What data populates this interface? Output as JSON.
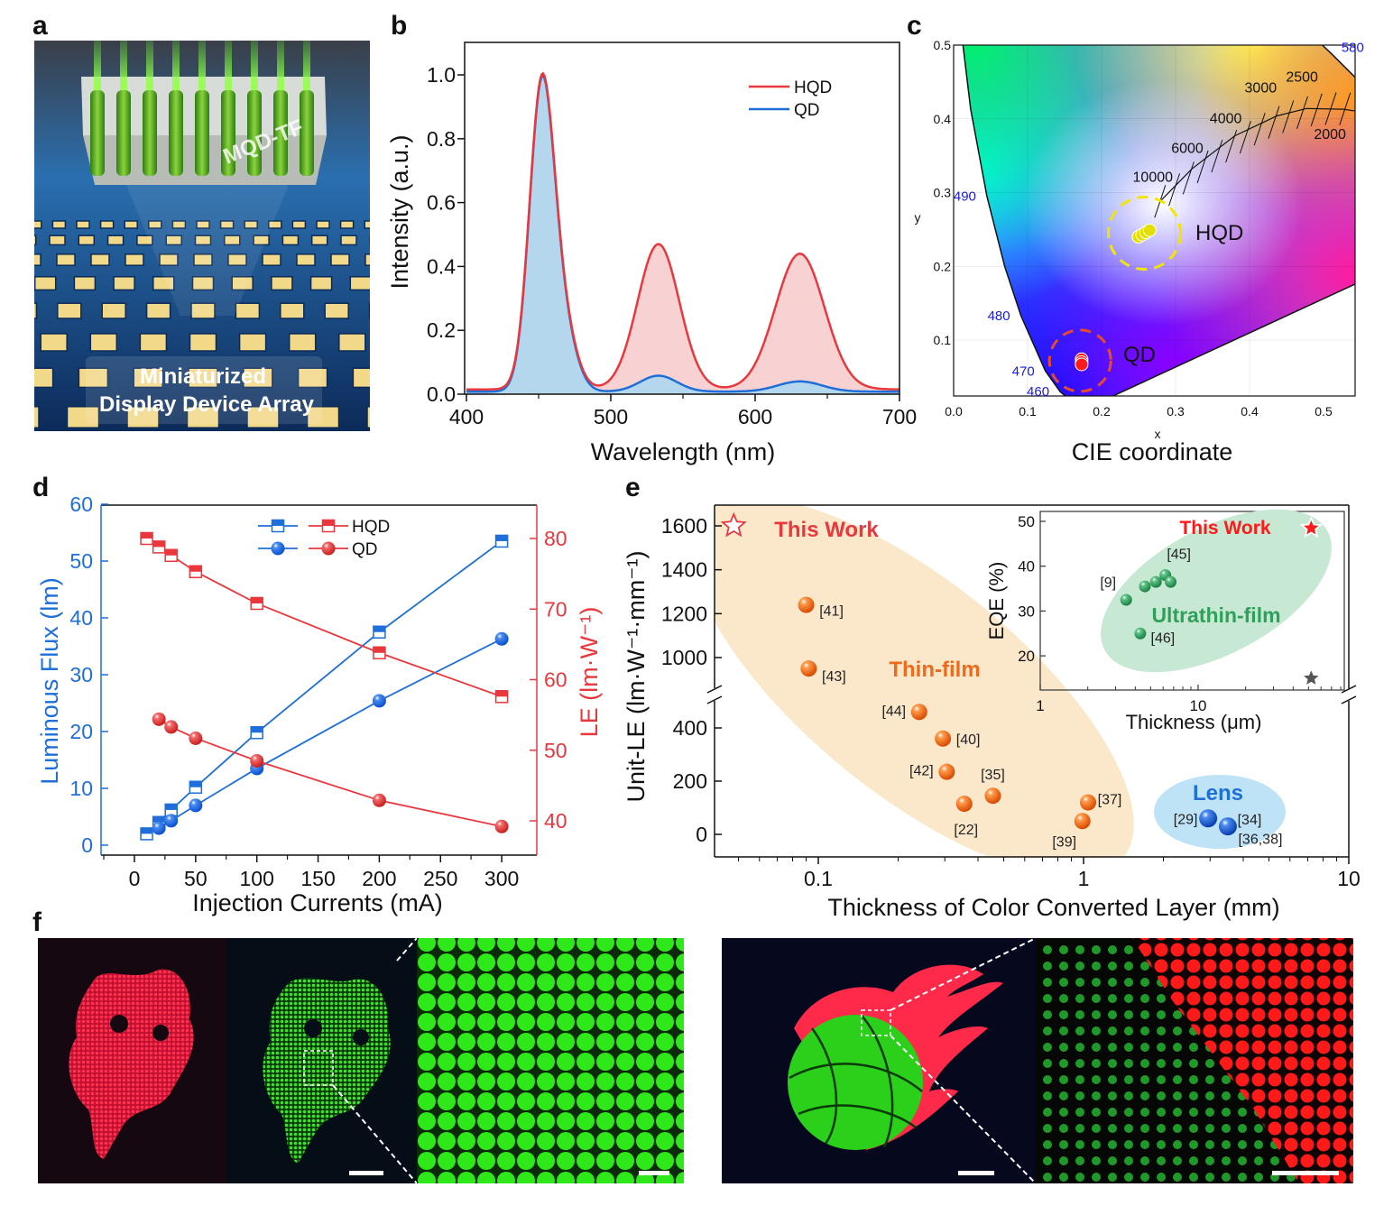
{
  "panel_labels": {
    "a": "a",
    "b": "b",
    "c": "c",
    "d": "d",
    "e": "e",
    "f": "f"
  },
  "panel_a": {
    "block_label": "MQD-TF",
    "caption_line1": "Miniaturized",
    "caption_line2": "Display Device Array"
  },
  "chart_data": [
    {
      "panel": "b",
      "type": "line",
      "title": "",
      "xlabel": "Wavelength (nm)",
      "ylabel": "Intensity (a.u.)",
      "xlim": [
        400,
        700
      ],
      "ylim": [
        0,
        1.1
      ],
      "xticks": [
        400,
        500,
        600,
        700
      ],
      "xtick_labels": [
        "400",
        "500",
        "600",
        "700"
      ],
      "yticks": [
        0,
        0.2,
        0.4,
        0.6,
        0.8,
        1.0
      ],
      "ytick_labels": [
        "0.0",
        "0.2",
        "0.4",
        "0.6",
        "0.8",
        "1.0"
      ],
      "legend": {
        "position": "top-right",
        "entries": [
          "HQD",
          "QD"
        ]
      },
      "series": [
        {
          "name": "HQD",
          "color": "#e8383d",
          "fill": "#f7caca",
          "baseline": 0.015,
          "peaks": [
            {
              "center": 452,
              "height": 0.92,
              "fwhm": 20
            },
            {
              "center": 466,
              "height": 0.2,
              "fwhm": 22
            },
            {
              "center": 533,
              "height": 0.455,
              "fwhm": 34
            },
            {
              "center": 631,
              "height": 0.425,
              "fwhm": 40
            }
          ]
        },
        {
          "name": "QD",
          "color": "#1e6fd9",
          "fill": "#a9d8f2",
          "baseline": 0.008,
          "peaks": [
            {
              "center": 452,
              "height": 0.92,
              "fwhm": 20
            },
            {
              "center": 466,
              "height": 0.2,
              "fwhm": 22
            },
            {
              "center": 533,
              "height": 0.05,
              "fwhm": 30
            },
            {
              "center": 631,
              "height": 0.032,
              "fwhm": 36
            }
          ]
        }
      ]
    },
    {
      "panel": "c",
      "type": "scatter",
      "title": "CIE coordinate",
      "xlabel": "x",
      "ylabel": "y",
      "xlim": [
        0,
        0.545
      ],
      "ylim": [
        0.024,
        0.5
      ],
      "xticks": [
        0,
        0.1,
        0.2,
        0.3,
        0.4,
        0.5
      ],
      "xtick_labels": [
        "0.0",
        "0.1",
        "0.2",
        "0.3",
        "0.4",
        "0.5"
      ],
      "yticks": [
        0.1,
        0.2,
        0.3,
        0.4,
        0.5
      ],
      "ytick_labels": [
        "0.1",
        "0.2",
        "0.3",
        "0.4",
        "0.5"
      ],
      "wavelength_marks": [
        {
          "label": "460",
          "x": 0.144,
          "y": 0.03
        },
        {
          "label": "470",
          "x": 0.124,
          "y": 0.058
        },
        {
          "label": "480",
          "x": 0.091,
          "y": 0.133
        },
        {
          "label": "490",
          "x": 0.045,
          "y": 0.295
        },
        {
          "label": "580",
          "x": 0.512,
          "y": 0.487
        }
      ],
      "planckian_locus": [
        {
          "label": "10000",
          "x": 0.279,
          "y": 0.288
        },
        {
          "label": "6000",
          "x": 0.322,
          "y": 0.332
        },
        {
          "label": "4000",
          "x": 0.38,
          "y": 0.377
        },
        {
          "label": "3000",
          "x": 0.437,
          "y": 0.404
        },
        {
          "label": "2500",
          "x": 0.477,
          "y": 0.414
        },
        {
          "label": "2000",
          "x": 0.527,
          "y": 0.413
        }
      ],
      "series": [
        {
          "name": "HQD",
          "color": "#e3e000",
          "points": [
            [
              0.25,
              0.24
            ],
            [
              0.255,
              0.243
            ],
            [
              0.26,
              0.246
            ],
            [
              0.265,
              0.249
            ]
          ]
        },
        {
          "name": "QD",
          "color": "#ff1a1a",
          "points": [
            [
              0.173,
              0.074
            ],
            [
              0.173,
              0.07
            ],
            [
              0.173,
              0.067
            ]
          ]
        }
      ]
    },
    {
      "panel": "d",
      "type": "line",
      "title": "",
      "xlabel": "Injection Currents (mA)",
      "ylabel": "Luminous Flux (lm)",
      "ylabel_right": "LE (lm·W⁻¹)",
      "xlim": [
        -20,
        325
      ],
      "ylim": [
        -2,
        60
      ],
      "ylim_right": [
        35,
        82.5
      ],
      "xticks": [
        0,
        50,
        100,
        150,
        200,
        250,
        300
      ],
      "xtick_labels": [
        "0",
        "50",
        "100",
        "150",
        "200",
        "250",
        "300"
      ],
      "yticks": [
        0,
        10,
        20,
        30,
        40,
        50,
        60
      ],
      "ytick_labels": [
        "0",
        "10",
        "20",
        "30",
        "40",
        "50",
        "60"
      ],
      "yticks_right": [
        40,
        50,
        60,
        70,
        80
      ],
      "ytick_labels_right": [
        "40",
        "50",
        "60",
        "70",
        "80"
      ],
      "legend": {
        "position": "top-center",
        "entries": [
          "HQD",
          "QD"
        ]
      },
      "series": [
        {
          "name": "HQD flux",
          "axis": "left",
          "color": "#1e6fd9",
          "marker": "square",
          "x": [
            10,
            20,
            30,
            50,
            100,
            200,
            300
          ],
          "y": [
            2.0,
            4.0,
            6.2,
            10.2,
            19.8,
            37.5,
            53.5
          ]
        },
        {
          "name": "QD flux",
          "axis": "left",
          "color": "#1e6fd9",
          "marker": "sphere",
          "x": [
            20,
            30,
            50,
            100,
            200,
            300
          ],
          "y": [
            3.0,
            4.3,
            7.0,
            13.5,
            25.4,
            36.3
          ]
        },
        {
          "name": "HQD LE",
          "axis": "right",
          "color": "#e8383d",
          "marker": "square",
          "x": [
            10,
            20,
            30,
            50,
            100,
            200,
            300
          ],
          "y": [
            80.0,
            78.8,
            77.6,
            75.3,
            70.8,
            63.8,
            57.6
          ]
        },
        {
          "name": "QD LE",
          "axis": "right",
          "color": "#e8383d",
          "marker": "sphere",
          "x": [
            20,
            30,
            50,
            100,
            200,
            300
          ],
          "y": [
            54.4,
            53.3,
            51.7,
            48.5,
            42.9,
            39.2
          ]
        }
      ]
    },
    {
      "panel": "e",
      "type": "scatter",
      "title": "",
      "xlabel": "Thickness of Color Converted Layer (mm)",
      "ylabel": "Unit-LE (lm·W⁻¹·mm⁻¹)",
      "xscale": "log",
      "xlim": [
        0.04,
        10
      ],
      "ylim_lower": [
        -60,
        500
      ],
      "ylim_upper": [
        860,
        1700
      ],
      "xticks": [
        0.1,
        1,
        10
      ],
      "xtick_labels": [
        "0.1",
        "1",
        "10"
      ],
      "yticks": [
        0,
        200,
        400,
        1000,
        1200,
        1400,
        1600
      ],
      "ytick_labels": [
        "0",
        "200",
        "400",
        "1000",
        "1200",
        "1400",
        "1600"
      ],
      "groups": [
        {
          "name": "Thin-film",
          "color": "#ee6a1c"
        },
        {
          "name": "Lens",
          "color": "#1e6fd9"
        }
      ],
      "this_work": {
        "label": "This Work",
        "x": 0.048,
        "y": 1600,
        "color": "#e8383d"
      },
      "points": [
        {
          "ref": "[41]",
          "x": 0.09,
          "y": 1240,
          "group": "Thin-film"
        },
        {
          "ref": "[43]",
          "x": 0.092,
          "y": 950,
          "group": "Thin-film"
        },
        {
          "ref": "[44]",
          "x": 0.24,
          "y": 460,
          "group": "Thin-film"
        },
        {
          "ref": "[40]",
          "x": 0.295,
          "y": 360,
          "group": "Thin-film"
        },
        {
          "ref": "[42]",
          "x": 0.305,
          "y": 235,
          "group": "Thin-film"
        },
        {
          "ref": "[22]",
          "x": 0.355,
          "y": 115,
          "group": "Thin-film"
        },
        {
          "ref": "[35]",
          "x": 0.455,
          "y": 145,
          "group": "Thin-film"
        },
        {
          "ref": "[37]",
          "x": 1.04,
          "y": 120,
          "group": "Thin-film"
        },
        {
          "ref": "[39]",
          "x": 0.99,
          "y": 50,
          "group": "Thin-film"
        },
        {
          "ref": "[29]",
          "x": 2.95,
          "y": 60,
          "group": "Lens"
        },
        {
          "ref": "[34]",
          "x": 3.5,
          "y": 30,
          "group": "Lens"
        },
        {
          "ref": "[36,38]",
          "x": 3.5,
          "y": 25,
          "group": "Lens"
        }
      ]
    },
    {
      "panel": "e-inset",
      "type": "scatter",
      "title": "",
      "xlabel": "Thickness (μm)",
      "ylabel": "EQE (%)",
      "xscale": "log",
      "xlim": [
        1,
        70
      ],
      "ylim": [
        12,
        52
      ],
      "xticks": [
        1,
        10
      ],
      "xtick_labels": [
        "1",
        "10"
      ],
      "yticks": [
        20,
        30,
        40,
        50
      ],
      "ytick_labels": [
        "20",
        "30",
        "40",
        "50"
      ],
      "group": {
        "name": "Ultrathin-film",
        "color": "#2fa05a"
      },
      "this_work": {
        "label": "This Work",
        "x": 52,
        "y": 48.5,
        "color": "#ff1a1a"
      },
      "reference_star": {
        "x": 52,
        "y": 15,
        "color": "#555555"
      },
      "points": [
        {
          "ref": "[9]",
          "x": 3.5,
          "y": 32.5
        },
        {
          "ref": "",
          "x": 4.6,
          "y": 35.5
        },
        {
          "ref": "",
          "x": 5.4,
          "y": 36.5
        },
        {
          "ref": "[45]",
          "x": 6.2,
          "y": 38
        },
        {
          "ref": "",
          "x": 6.7,
          "y": 36.5
        },
        {
          "ref": "[46]",
          "x": 4.3,
          "y": 25
        }
      ]
    }
  ]
}
